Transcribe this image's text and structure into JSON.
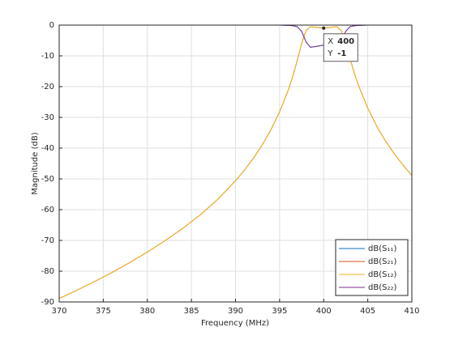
{
  "chart_data": {
    "type": "line",
    "x_label": "Frequency (MHz)",
    "y_label": "Magnitude (dB)",
    "x": [
      370,
      372,
      374,
      376,
      378,
      380,
      382,
      384,
      386,
      388,
      390,
      391,
      392,
      393,
      394,
      395,
      396,
      396.5,
      397,
      397.5,
      398,
      398.5,
      399,
      400,
      401,
      401.5,
      402,
      402.5,
      403,
      403.5,
      404,
      405,
      406,
      407,
      408,
      409,
      410
    ],
    "series": [
      {
        "name": "dB(S₁₁)",
        "color": "#0072bd",
        "values": [
          null,
          null,
          null,
          null,
          null,
          null,
          null,
          null,
          null,
          0,
          0,
          0,
          0,
          0,
          0,
          0,
          -0.1,
          -0.2,
          -0.5,
          -2,
          -5.5,
          -7.2,
          -7,
          -6.5,
          -7,
          -7.2,
          -5.5,
          -2,
          -0.5,
          -0.2,
          -0.1,
          0,
          0,
          0,
          0,
          0,
          0
        ]
      },
      {
        "name": "dB(S₂₁)",
        "color": "#d95319",
        "values": [
          -88.9,
          -86.2,
          -83.4,
          -80.4,
          -77.2,
          -73.8,
          -70.1,
          -66.1,
          -61.7,
          -56.6,
          -50.6,
          -47.2,
          -43.4,
          -39.1,
          -34.1,
          -28.2,
          -21,
          -16.6,
          -11.5,
          -6,
          -1.8,
          -0.5,
          -0.7,
          -1,
          -0.7,
          -0.5,
          -1.8,
          -6,
          -11,
          -15.8,
          -20,
          -27,
          -32.8,
          -37.6,
          -41.8,
          -45.5,
          -48.9
        ]
      },
      {
        "name": "dB(S₁₂)",
        "color": "#edb120",
        "values": [
          -88.9,
          -86.2,
          -83.4,
          -80.4,
          -77.2,
          -73.8,
          -70.1,
          -66.1,
          -61.7,
          -56.6,
          -50.6,
          -47.2,
          -43.4,
          -39.1,
          -34.1,
          -28.2,
          -21,
          -16.6,
          -11.5,
          -6,
          -1.8,
          -0.5,
          -0.7,
          -1,
          -0.7,
          -0.5,
          -1.8,
          -6,
          -11,
          -15.8,
          -20,
          -27,
          -32.8,
          -37.6,
          -41.8,
          -45.5,
          -48.9
        ]
      },
      {
        "name": "dB(S₂₂)",
        "color": "#7e2f8e",
        "values": [
          null,
          null,
          null,
          null,
          null,
          null,
          null,
          null,
          null,
          0,
          0,
          0,
          0,
          0,
          0,
          0,
          -0.1,
          -0.2,
          -0.5,
          -2,
          -5.5,
          -7.2,
          -7,
          -6.5,
          -7,
          -7.2,
          -5.5,
          -2,
          -0.5,
          -0.2,
          -0.1,
          0,
          0,
          0,
          0,
          0,
          0
        ]
      }
    ],
    "xlim": [
      370,
      410
    ],
    "xticks": [
      370,
      375,
      380,
      385,
      390,
      395,
      400,
      405,
      410
    ],
    "ylim": [
      -90,
      0
    ],
    "yticks": [
      0,
      -10,
      -20,
      -30,
      -40,
      -50,
      -60,
      -70,
      -80,
      -90
    ],
    "grid": true,
    "legend": "bottom-right",
    "datatip": {
      "x_label": "X",
      "x": 400,
      "y_label": "Y",
      "y": -1
    }
  }
}
